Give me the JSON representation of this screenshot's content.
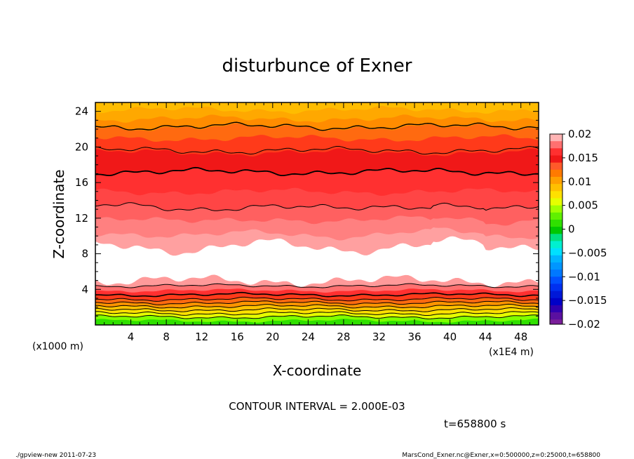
{
  "chart_data": {
    "type": "contour",
    "title": "disturbunce of Exner",
    "xlabel": "X-coordinate",
    "ylabel": "Z-coordinate",
    "x_unit_label": "(x1E4 m)",
    "y_unit_label": "(x1000 m)",
    "x_range": [
      0,
      50
    ],
    "y_range": [
      0,
      25
    ],
    "x_ticks": [
      4,
      8,
      12,
      16,
      20,
      24,
      28,
      32,
      36,
      40,
      44,
      48
    ],
    "y_ticks": [
      4,
      8,
      12,
      16,
      20,
      24
    ],
    "contour_interval_text": "CONTOUR INTERVAL = 2.000E-03",
    "time_text": "t=658800 s",
    "colorbar": {
      "range": [
        -0.02,
        0.02
      ],
      "tick_values": [
        0.02,
        0.015,
        0.01,
        0.005,
        0,
        -0.005,
        -0.01,
        -0.015,
        -0.02
      ],
      "tick_labels": [
        "0.02",
        "0.015",
        "0.01",
        "0.005",
        "0",
        "−0.005",
        "−0.01",
        "−0.015",
        "−0.02"
      ],
      "levels": [
        {
          "from": 0.0185,
          "to": 0.02,
          "color": "#ffb4b4"
        },
        {
          "from": 0.017,
          "to": 0.0185,
          "color": "#ff7070"
        },
        {
          "from": 0.0155,
          "to": 0.017,
          "color": "#ff3030"
        },
        {
          "from": 0.014,
          "to": 0.0155,
          "color": "#f01818"
        },
        {
          "from": 0.0125,
          "to": 0.014,
          "color": "#ff5a2a"
        },
        {
          "from": 0.011,
          "to": 0.0125,
          "color": "#ff7a00"
        },
        {
          "from": 0.0095,
          "to": 0.011,
          "color": "#ffa000"
        },
        {
          "from": 0.008,
          "to": 0.0095,
          "color": "#ffc000"
        },
        {
          "from": 0.0065,
          "to": 0.008,
          "color": "#ffe000"
        },
        {
          "from": 0.005,
          "to": 0.0065,
          "color": "#e6ff00"
        },
        {
          "from": 0.0035,
          "to": 0.005,
          "color": "#a0ff00"
        },
        {
          "from": 0.002,
          "to": 0.0035,
          "color": "#60f000"
        },
        {
          "from": 0.0005,
          "to": 0.002,
          "color": "#30e000"
        },
        {
          "from": -0.001,
          "to": 0.0005,
          "color": "#00c800"
        },
        {
          "from": -0.0025,
          "to": -0.001,
          "color": "#00e080"
        },
        {
          "from": -0.004,
          "to": -0.0025,
          "color": "#00f0d0"
        },
        {
          "from": -0.0055,
          "to": -0.004,
          "color": "#00e0ff"
        },
        {
          "from": -0.007,
          "to": -0.0055,
          "color": "#00b4ff"
        },
        {
          "from": -0.0085,
          "to": -0.007,
          "color": "#0096ff"
        },
        {
          "from": -0.01,
          "to": -0.0085,
          "color": "#0078ff"
        },
        {
          "from": -0.0115,
          "to": -0.01,
          "color": "#0050ff"
        },
        {
          "from": -0.013,
          "to": -0.0115,
          "color": "#0030f0"
        },
        {
          "from": -0.0145,
          "to": -0.013,
          "color": "#0018d8"
        },
        {
          "from": -0.016,
          "to": -0.0145,
          "color": "#0000c8"
        },
        {
          "from": -0.0175,
          "to": -0.016,
          "color": "#3000b0"
        },
        {
          "from": -0.019,
          "to": -0.0175,
          "color": "#5a10a0"
        },
        {
          "from": -0.02,
          "to": -0.019,
          "color": "#7a1e9a"
        }
      ]
    },
    "bands": [
      {
        "z_from": 0,
        "z_to": 0.5,
        "color": "#30e000"
      },
      {
        "z_from": 0.5,
        "z_to": 0.9,
        "color": "#80ff00"
      },
      {
        "z_from": 0.9,
        "z_to": 1.3,
        "color": "#e6ff00"
      },
      {
        "z_from": 1.3,
        "z_to": 1.7,
        "color": "#ffe000"
      },
      {
        "z_from": 1.7,
        "z_to": 2.1,
        "color": "#ffc000"
      },
      {
        "z_from": 2.1,
        "z_to": 2.5,
        "color": "#ff9400"
      },
      {
        "z_from": 2.5,
        "z_to": 2.9,
        "color": "#ff6a10"
      },
      {
        "z_from": 2.9,
        "z_to": 3.4,
        "color": "#ff3a1a"
      },
      {
        "z_from": 3.4,
        "z_to": 3.9,
        "color": "#ff3030"
      },
      {
        "z_from": 3.9,
        "z_to": 4.4,
        "color": "#ff7070"
      },
      {
        "z_from": 4.4,
        "z_to": 5.0,
        "color": "#ff9a9a"
      },
      {
        "z_from": 5.0,
        "z_to": 8.8,
        "color": "#ffffff"
      },
      {
        "z_from": 8.8,
        "z_to": 10.2,
        "color": "#ffa0a0"
      },
      {
        "z_from": 10.2,
        "z_to": 11.8,
        "color": "#ff8080"
      },
      {
        "z_from": 11.8,
        "z_to": 13.2,
        "color": "#ff6060"
      },
      {
        "z_from": 13.2,
        "z_to": 15.0,
        "color": "#ff4545"
      },
      {
        "z_from": 15.0,
        "z_to": 17.2,
        "color": "#ff3030"
      },
      {
        "z_from": 17.2,
        "z_to": 19.4,
        "color": "#f01818"
      },
      {
        "z_from": 19.4,
        "z_to": 21.0,
        "color": "#ff3a1a"
      },
      {
        "z_from": 21.0,
        "z_to": 22.2,
        "color": "#ff6a10"
      },
      {
        "z_from": 22.2,
        "z_to": 23.2,
        "color": "#ff8c00"
      },
      {
        "z_from": 23.2,
        "z_to": 24.2,
        "color": "#ffa800"
      },
      {
        "z_from": 24.2,
        "z_to": 25.0,
        "color": "#ffbc00"
      }
    ],
    "contours": [
      {
        "z": 0.9,
        "width": 1
      },
      {
        "z": 1.3,
        "width": 1
      },
      {
        "z": 1.7,
        "width": 1
      },
      {
        "z": 2.1,
        "width": 1
      },
      {
        "z": 2.5,
        "width": 1
      },
      {
        "z": 2.9,
        "width": 1
      },
      {
        "z": 3.4,
        "width": 1.6
      },
      {
        "z": 4.4,
        "width": 1
      },
      {
        "z": 13.2,
        "width": 1
      },
      {
        "z": 17.2,
        "width": 1.8
      },
      {
        "z": 19.6,
        "width": 1
      },
      {
        "z": 22.3,
        "width": 1.4
      }
    ]
  },
  "footer": {
    "left": "./gpview-new   2011-07-23",
    "right": "MarsCond_Exner.nc@Exner,x=0:500000,z=0:25000,t=658800"
  }
}
